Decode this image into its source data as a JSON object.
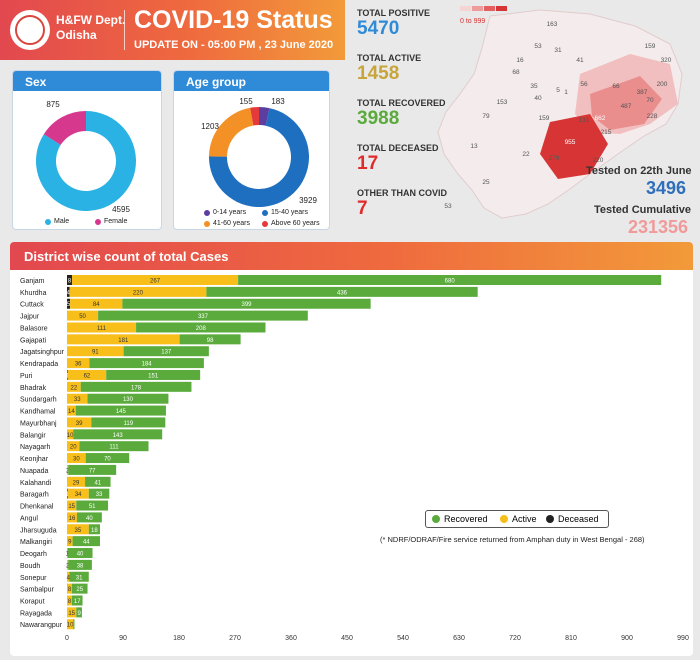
{
  "header": {
    "dept_line1": "H&FW Dept.",
    "dept_line2": "Odisha",
    "title": "COVID-19 Status",
    "update": "UPDATE ON - 05:00 PM , 23 June 2020"
  },
  "stats": {
    "positive_label": "TOTAL POSITIVE",
    "positive_value": "5470",
    "active_label": "TOTAL ACTIVE",
    "active_value": "1458",
    "recovered_label": "TOTAL RECOVERED",
    "recovered_value": "3988",
    "deceased_label": "TOTAL DECEASED",
    "deceased_value": "17",
    "other_label": "OTHER THAN COVID",
    "other_value": "7"
  },
  "tested": {
    "day_label": "Tested on 22th June",
    "day_value": "3496",
    "cum_label": "Tested Cumulative",
    "cum_value": "231356"
  },
  "map": {
    "scale_label": "0 to 999",
    "scale_colors": [
      "#f6d4d4",
      "#ee9b9b",
      "#e46060",
      "#d73535"
    ],
    "labels": [
      "163",
      "53",
      "31",
      "159",
      "320",
      "16",
      "41",
      "66",
      "387",
      "200",
      "68",
      "35",
      "56",
      "5",
      "1",
      "153",
      "40",
      "487",
      "228",
      "79",
      "159",
      "662",
      "70",
      "131",
      "215",
      "13",
      "955",
      "279",
      "220",
      "22",
      "25",
      "53"
    ]
  },
  "colors": {
    "recovered": "#5aab3c",
    "active": "#f8bf1a",
    "deceased": "#222222",
    "header_blue": "#2f8bd7"
  },
  "chart_data": [
    {
      "type": "pie",
      "title": "Sex",
      "categories": [
        "Male",
        "Female"
      ],
      "values": [
        4595,
        875
      ],
      "colors": [
        "#29b2e3",
        "#d6388e"
      ]
    },
    {
      "type": "pie",
      "title": "Age group",
      "categories": [
        "0-14 years",
        "15-40 years",
        "41-60 years",
        "Above 60 years"
      ],
      "values": [
        183,
        3929,
        1203,
        155
      ],
      "colors": [
        "#5b3ea0",
        "#1e6fc0",
        "#f39126",
        "#e43a3a"
      ]
    },
    {
      "type": "bar",
      "orientation": "horizontal",
      "stacked": true,
      "title": "District wise count of total Cases",
      "categories": [
        "Ganjam",
        "Khurdha",
        "Cuttack",
        "Jajpur",
        "Balasore",
        "Gajapati",
        "Jagatsinghpur",
        "Kendrapada",
        "Puri",
        "Bhadrak",
        "Sundargarh",
        "Kandhamal",
        "Mayurbhanj",
        "Balangir",
        "Nayagarh",
        "Keonjhar",
        "Nuapada",
        "Kalahandi",
        "Baragarh",
        "Dhenkanal",
        "Angul",
        "Jharsuguda",
        "Malkangiri",
        "Deogarh",
        "Boudh",
        "Sonepur",
        "Sambalpur",
        "Koraput",
        "Rayagada",
        "Nawarangpur"
      ],
      "series": [
        {
          "name": "Deceased",
          "values": [
            8,
            4,
            5,
            0,
            0,
            0,
            0,
            0,
            1,
            0,
            0,
            0,
            0,
            0,
            0,
            0,
            0,
            0,
            1,
            0,
            0,
            0,
            0,
            0,
            0,
            0,
            0,
            0,
            0,
            0
          ],
          "labels": [
            "8",
            "4",
            "5",
            "",
            "",
            "",
            "",
            "",
            "1",
            "",
            "",
            "",
            "",
            "",
            "",
            "",
            "",
            "",
            "1",
            "",
            "",
            "",
            "",
            "",
            "",
            "",
            "",
            "",
            "",
            ""
          ]
        },
        {
          "name": "Active",
          "values": [
            267,
            220,
            84,
            50,
            111,
            181,
            91,
            36,
            62,
            22,
            33,
            14,
            39,
            10,
            20,
            30,
            2,
            29,
            34,
            15,
            16,
            35,
            9,
            1,
            2,
            4,
            8,
            8,
            15,
            10
          ],
          "labels": [
            "267",
            "220",
            "84",
            "50",
            "111",
            "181",
            "91",
            "36",
            "62",
            "22",
            "33",
            "14",
            "39",
            "10",
            "20",
            "30",
            "2",
            "29",
            "34",
            "15",
            "16",
            "35",
            "9",
            "1",
            "2",
            "4",
            "8",
            "8",
            "15",
            "10"
          ]
        },
        {
          "name": "Recovered",
          "values": [
            680,
            436,
            399,
            337,
            208,
            98,
            137,
            184,
            151,
            178,
            130,
            145,
            119,
            143,
            111,
            70,
            77,
            41,
            33,
            51,
            40,
            18,
            44,
            40,
            38,
            31,
            25,
            17,
            9,
            2
          ],
          "labels": [
            "680",
            "436",
            "399",
            "337",
            "208",
            "98",
            "137",
            "184",
            "151",
            "178",
            "130",
            "145",
            "119",
            "143",
            "111",
            "70",
            "77",
            "41",
            "33",
            "51",
            "40",
            "18",
            "44",
            "40",
            "38",
            "31",
            "25",
            "17",
            "9",
            ""
          ]
        }
      ],
      "xlim": [
        0,
        990
      ],
      "xticks": [
        "0",
        "90",
        "180",
        "270",
        "360",
        "450",
        "540",
        "630",
        "720",
        "810",
        "900",
        "990"
      ],
      "legend": [
        "Recovered",
        "Active",
        "Deceased"
      ],
      "legend_placement": "bottom-right",
      "note": "(* NDRF/ODRAF/Fire service returned from Amphan duty in West Bengal - 268)"
    }
  ]
}
